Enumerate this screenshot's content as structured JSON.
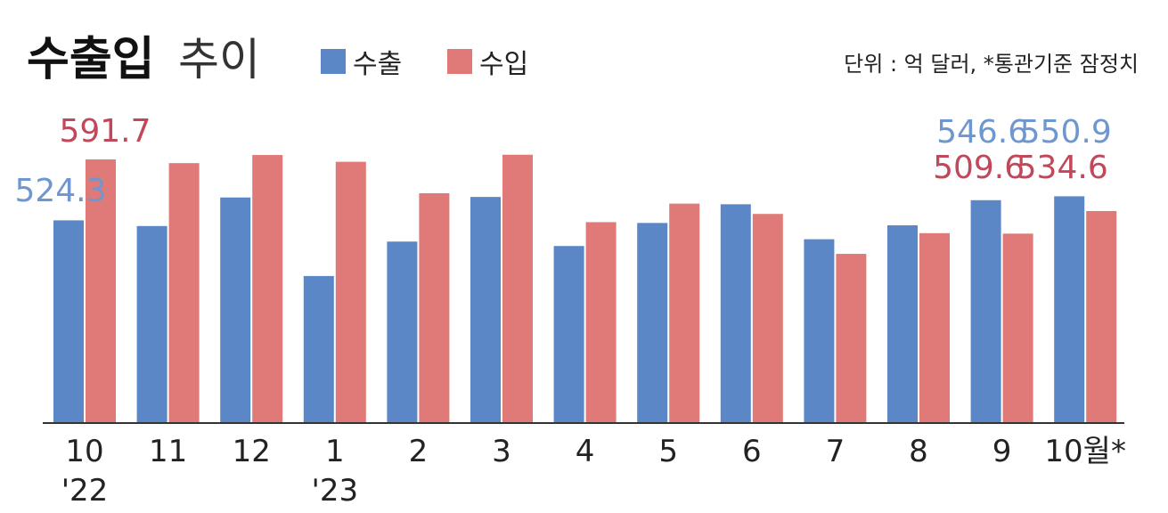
{
  "header": {
    "title_bold": "수출입",
    "title_light": "추이",
    "unit_note": "단위 : 억 달러, *통관기준 잠정치"
  },
  "colors": {
    "export": "#5b87c6",
    "import": "#e07a78",
    "export_label": "#6f97cf",
    "import_label": "#c0485a",
    "axis": "#333333"
  },
  "chart_data": {
    "type": "bar",
    "title": "수출입 추이",
    "unit": "단위 : 억 달러, *통관기준 잠정치",
    "categories": [
      "10",
      "11",
      "12",
      "1",
      "2",
      "3",
      "4",
      "5",
      "6",
      "7",
      "8",
      "9",
      "10월*"
    ],
    "category_sublabels": [
      "'22",
      "",
      "",
      "'23",
      "",
      "",
      "",
      "",
      "",
      "",
      "",
      "",
      ""
    ],
    "series": [
      {
        "name": "수출",
        "values": [
          524.3,
          518.0,
          549.6,
          462.7,
          500.8,
          550.2,
          495.9,
          521.4,
          542.1,
          503.4,
          518.8,
          546.6,
          550.9
        ]
      },
      {
        "name": "수입",
        "values": [
          591.7,
          587.6,
          596.6,
          589.1,
          554.3,
          596.9,
          522.3,
          542.8,
          531.4,
          487.2,
          510.1,
          509.6,
          534.6
        ]
      }
    ],
    "data_labels": [
      {
        "category_index": 0,
        "series": 0,
        "text": "524.3"
      },
      {
        "category_index": 0,
        "series": 1,
        "text": "591.7"
      },
      {
        "category_index": 11,
        "series": 0,
        "text": "546.6"
      },
      {
        "category_index": 11,
        "series": 1,
        "text": "509.6"
      },
      {
        "category_index": 12,
        "series": 0,
        "text": "550.9"
      },
      {
        "category_index": 12,
        "series": 1,
        "text": "534.6"
      }
    ],
    "ylim": [
      300,
      640
    ],
    "grid": false,
    "legend_position": "top-left"
  }
}
